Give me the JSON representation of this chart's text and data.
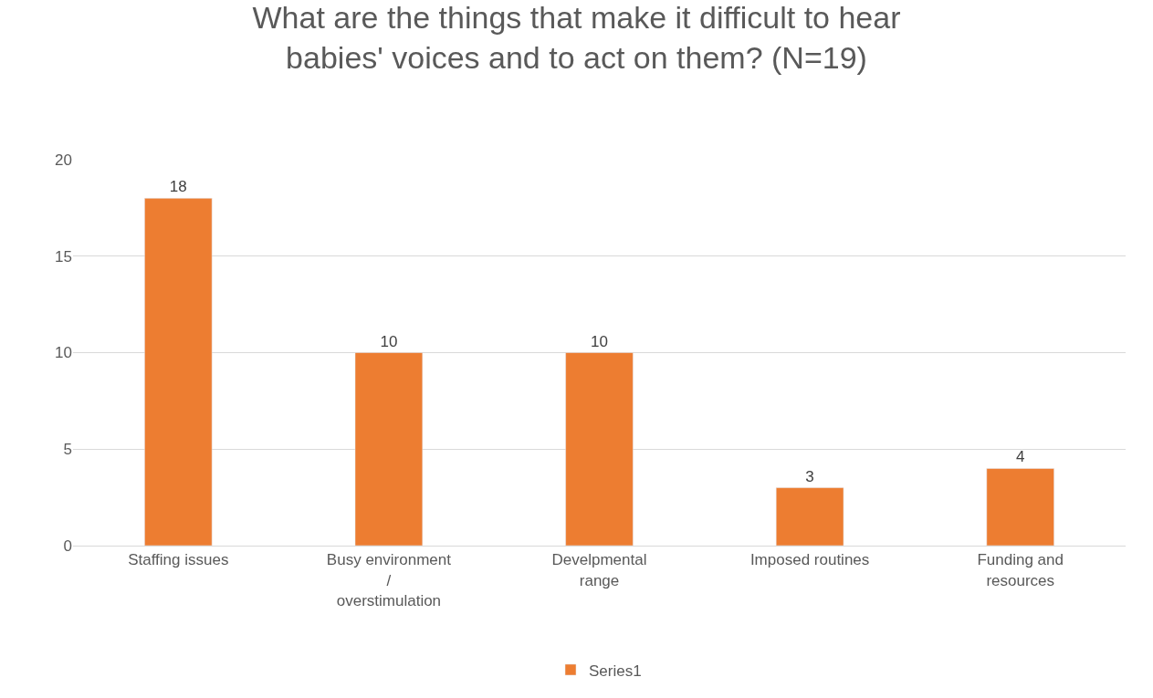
{
  "chart_data": {
    "type": "bar",
    "title": "What are the things that make it difficult to hear babies' voices and to act on them? (N=19)",
    "categories": [
      "Staffing issues",
      "Busy environment / overstimulation",
      "Develpmental range",
      "Imposed routines",
      "Funding and resources"
    ],
    "series": [
      {
        "name": "Series1",
        "color": "#ed7d31",
        "values": [
          18,
          10,
          10,
          3,
          4
        ]
      }
    ],
    "ylim": [
      0,
      20
    ],
    "yticks": [
      0,
      5,
      10,
      15,
      20
    ],
    "grid": "y",
    "legend": "bottom",
    "data_labels": true
  }
}
